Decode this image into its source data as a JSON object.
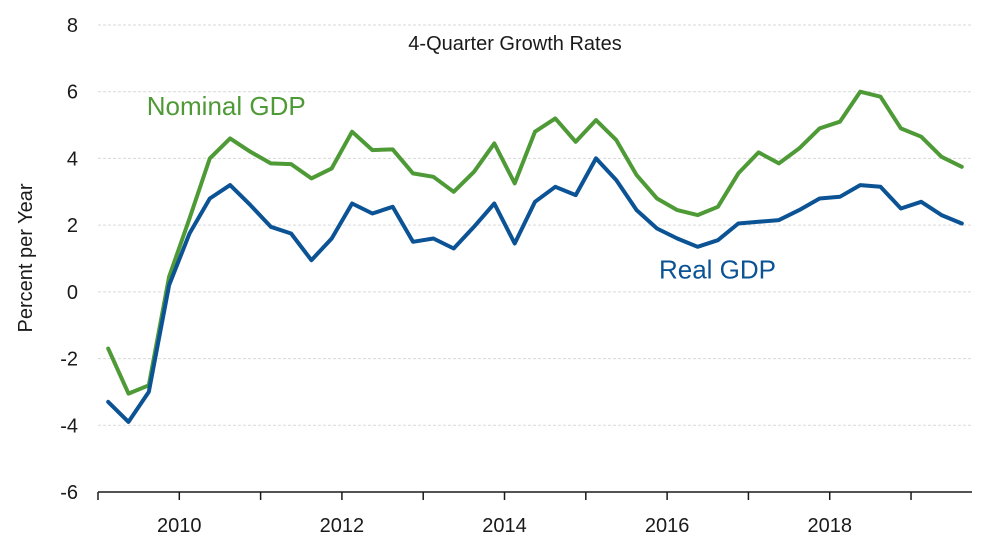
{
  "chart_data": {
    "type": "line",
    "title": "4-Quarter Growth Rates",
    "xlabel": "",
    "ylabel": "Percent per Year",
    "ylim": [
      -6,
      8
    ],
    "yticks": [
      -6,
      -4,
      -2,
      0,
      2,
      4,
      6,
      8
    ],
    "ytick_labels": [
      "-6",
      "-4",
      "-2",
      "0",
      "2",
      "4",
      "6",
      "8"
    ],
    "xlim": [
      2009.0,
      2019.75
    ],
    "xticks": [
      2009,
      2010,
      2011,
      2012,
      2013,
      2014,
      2015,
      2016,
      2017,
      2018,
      2019
    ],
    "xtick_labels": [
      {
        "x": 2010,
        "label": "2010"
      },
      {
        "x": 2012,
        "label": "2012"
      },
      {
        "x": 2014,
        "label": "2014"
      },
      {
        "x": 2016,
        "label": "2016"
      },
      {
        "x": 2018,
        "label": "2018"
      }
    ],
    "grid": true,
    "x": [
      2009.125,
      2009.375,
      2009.625,
      2009.875,
      2010.125,
      2010.375,
      2010.625,
      2010.875,
      2011.125,
      2011.375,
      2011.625,
      2011.875,
      2012.125,
      2012.375,
      2012.625,
      2012.875,
      2013.125,
      2013.375,
      2013.625,
      2013.875,
      2014.125,
      2014.375,
      2014.625,
      2014.875,
      2015.125,
      2015.375,
      2015.625,
      2015.875,
      2016.125,
      2016.375,
      2016.625,
      2016.875,
      2017.125,
      2017.375,
      2017.625,
      2017.875,
      2018.125,
      2018.375,
      2018.625,
      2018.875,
      2019.125,
      2019.375,
      2019.625
    ],
    "series": [
      {
        "name": "Nominal GDP",
        "color": "#4e9a36",
        "label_pos": [
          2009.6,
          5.3
        ],
        "values": [
          -1.7,
          -3.05,
          -2.8,
          0.45,
          2.2,
          4.0,
          4.6,
          4.2,
          3.85,
          3.83,
          3.4,
          3.7,
          4.8,
          4.25,
          4.27,
          3.55,
          3.45,
          3.0,
          3.6,
          4.45,
          3.25,
          4.8,
          5.2,
          4.5,
          5.15,
          4.55,
          3.5,
          2.8,
          2.45,
          2.3,
          2.55,
          3.55,
          4.18,
          3.85,
          4.3,
          4.9,
          5.1,
          6.0,
          5.85,
          4.9,
          4.65,
          4.05,
          3.75
        ]
      },
      {
        "name": "Real GDP",
        "color": "#0b5394",
        "label_pos": [
          2015.9,
          0.4
        ],
        "values": [
          -3.3,
          -3.9,
          -3.0,
          0.2,
          1.75,
          2.8,
          3.2,
          2.6,
          1.95,
          1.75,
          0.95,
          1.6,
          2.65,
          2.35,
          2.55,
          1.5,
          1.6,
          1.3,
          1.95,
          2.65,
          1.45,
          2.7,
          3.15,
          2.9,
          4.0,
          3.35,
          2.45,
          1.9,
          1.6,
          1.35,
          1.55,
          2.05,
          2.1,
          2.15,
          2.45,
          2.8,
          2.85,
          3.2,
          3.15,
          2.5,
          2.7,
          2.3,
          2.05
        ]
      }
    ]
  }
}
